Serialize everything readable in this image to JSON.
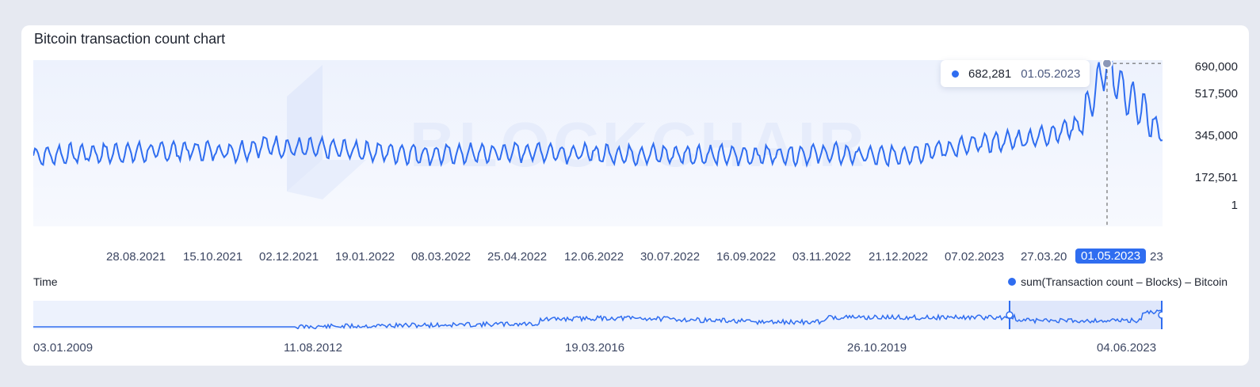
{
  "chart_data": {
    "type": "line",
    "title": "Bitcoin transaction count chart",
    "watermark": "BLOCKCHAIR",
    "xlabel": "Time",
    "legend": "sum(Transaction count – Blocks) – Bitcoin",
    "series_color": "#2f6df0",
    "y_ticks": [
      "690,000",
      "517,500",
      "345,000",
      "172,501",
      "1"
    ],
    "ylim": [
      1,
      690000
    ],
    "x_ticks": [
      "28.08.2021",
      "15.10.2021",
      "02.12.2021",
      "19.01.2022",
      "08.03.2022",
      "25.04.2022",
      "12.06.2022",
      "30.07.2022",
      "16.09.2022",
      "03.11.2022",
      "21.12.2022",
      "07.02.2023",
      "27.03.20",
      "23"
    ],
    "x_range": [
      "2021-07-12",
      "2023-06-04"
    ],
    "tooltip": {
      "value": "682,281",
      "date": "01.05.2023"
    },
    "highlight_x_label": "01.05.2023",
    "navigator_ticks": [
      "03.01.2009",
      "11.08.2012",
      "19.03.2016",
      "26.10.2019",
      "04.06.2023"
    ],
    "series": [
      {
        "name": "sum(Transaction count – Blocks) – Bitcoin",
        "points": [
          [
            "2021-07-15",
            250000
          ],
          [
            "2021-08-15",
            260000
          ],
          [
            "2021-09-15",
            265000
          ],
          [
            "2021-10-15",
            275000
          ],
          [
            "2021-11-15",
            270000
          ],
          [
            "2021-12-01",
            300000
          ],
          [
            "2021-12-15",
            285000
          ],
          [
            "2022-01-15",
            280000
          ],
          [
            "2022-02-15",
            265000
          ],
          [
            "2022-03-15",
            255000
          ],
          [
            "2022-04-15",
            260000
          ],
          [
            "2022-05-15",
            270000
          ],
          [
            "2022-06-15",
            260000
          ],
          [
            "2022-07-15",
            255000
          ],
          [
            "2022-08-15",
            255000
          ],
          [
            "2022-09-15",
            250000
          ],
          [
            "2022-10-15",
            255000
          ],
          [
            "2022-11-15",
            260000
          ],
          [
            "2022-12-15",
            245000
          ],
          [
            "2023-01-15",
            275000
          ],
          [
            "2023-02-01",
            290000
          ],
          [
            "2023-02-15",
            310000
          ],
          [
            "2023-03-01",
            320000
          ],
          [
            "2023-03-15",
            330000
          ],
          [
            "2023-04-01",
            360000
          ],
          [
            "2023-04-15",
            400000
          ],
          [
            "2023-05-01",
            682281
          ],
          [
            "2023-05-10",
            560000
          ],
          [
            "2023-05-20",
            480000
          ],
          [
            "2023-05-28",
            420000
          ],
          [
            "2023-06-04",
            340000
          ]
        ]
      }
    ]
  }
}
